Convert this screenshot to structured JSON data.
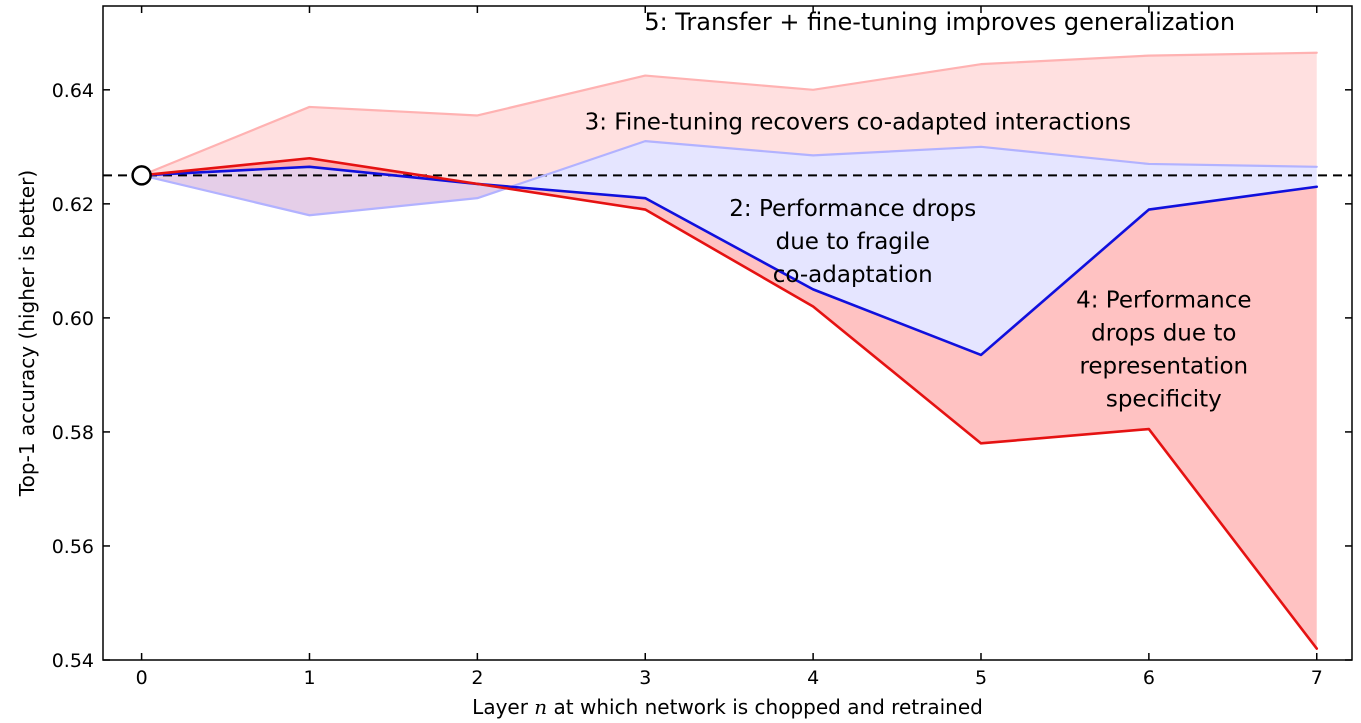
{
  "chart_data": {
    "type": "line",
    "title": "",
    "xlabel_prefix": "Layer ",
    "xlabel_var": "n",
    "xlabel_suffix": " at which network is chopped and retrained",
    "ylabel": "Top-1 accuracy (higher is better)",
    "x": [
      0,
      1,
      2,
      3,
      4,
      5,
      6,
      7
    ],
    "xlim": [
      -0.23,
      7.21
    ],
    "ylim": [
      0.54,
      0.6547
    ],
    "xticks": [
      0,
      1,
      2,
      3,
      4,
      5,
      6,
      7
    ],
    "xtick_labels": [
      "0",
      "1",
      "2",
      "3",
      "4",
      "5",
      "6",
      "7"
    ],
    "yticks": [
      0.54,
      0.56,
      0.58,
      0.6,
      0.62,
      0.64
    ],
    "ytick_labels": [
      "0.54",
      "0.56",
      "0.58",
      "0.60",
      "0.62",
      "0.64"
    ],
    "grid": false,
    "legend": "none",
    "baseline": {
      "value": 0.625,
      "style": "dashed",
      "color": "#000000",
      "marker": {
        "x": 0,
        "y": 0.625,
        "shape": "circle",
        "fill": "#ffffff",
        "stroke": "#000000"
      }
    },
    "series": [
      {
        "name": "transfer-finetune",
        "annotation_ref": "5",
        "color": "#ffb2b2",
        "width": 2.2,
        "values": [
          0.625,
          0.637,
          0.6355,
          0.6425,
          0.64,
          0.6445,
          0.646,
          0.6465
        ]
      },
      {
        "name": "finetune-coadapted",
        "annotation_ref": "3",
        "color": "#b2b2ff",
        "width": 2.2,
        "values": [
          0.625,
          0.618,
          0.621,
          0.631,
          0.6285,
          0.63,
          0.627,
          0.6265
        ]
      },
      {
        "name": "fragile-coadaptation",
        "annotation_ref": "2",
        "color": "#1010dd",
        "width": 2.6,
        "values": [
          0.625,
          0.6265,
          0.6235,
          0.621,
          0.605,
          0.5935,
          0.619,
          0.623
        ]
      },
      {
        "name": "representation-specificity",
        "annotation_ref": "4",
        "color": "#e51212",
        "width": 2.6,
        "values": [
          0.625,
          0.628,
          0.6235,
          0.619,
          0.602,
          0.578,
          0.5805,
          0.542
        ]
      }
    ],
    "fills": [
      {
        "upper": 0,
        "lower": 1,
        "color": "rgba(255,160,160,0.33)"
      },
      {
        "upper": 1,
        "lower": 2,
        "color": "rgba(150,150,255,0.25)"
      },
      {
        "upper": 2,
        "lower": 3,
        "color": "rgba(255,110,110,0.42)"
      }
    ],
    "annotations": [
      {
        "name": "annotation-5",
        "x": 4.754,
        "y": 0.6505,
        "size": 24,
        "color": "#000000",
        "line_height": 33,
        "lines": [
          "5: Transfer + fine-tuning improves generalization"
        ]
      },
      {
        "name": "annotation-3",
        "x": 4.266,
        "y": 0.633,
        "size": 23,
        "color": "#000000",
        "line_height": 33,
        "lines": [
          "3: Fine-tuning recovers co-adapted interactions"
        ]
      },
      {
        "name": "annotation-2",
        "x": 4.236,
        "y": 0.6179,
        "size": 23,
        "color": "#000000",
        "line_height": 33,
        "lines": [
          "2: Performance drops",
          "due to fragile",
          "co-adaptation"
        ]
      },
      {
        "name": "annotation-4",
        "x": 6.089,
        "y": 0.6018,
        "size": 23,
        "color": "#000000",
        "line_height": 33,
        "lines": [
          "4: Performance",
          "drops due to",
          "representation",
          "specificity"
        ]
      }
    ]
  }
}
